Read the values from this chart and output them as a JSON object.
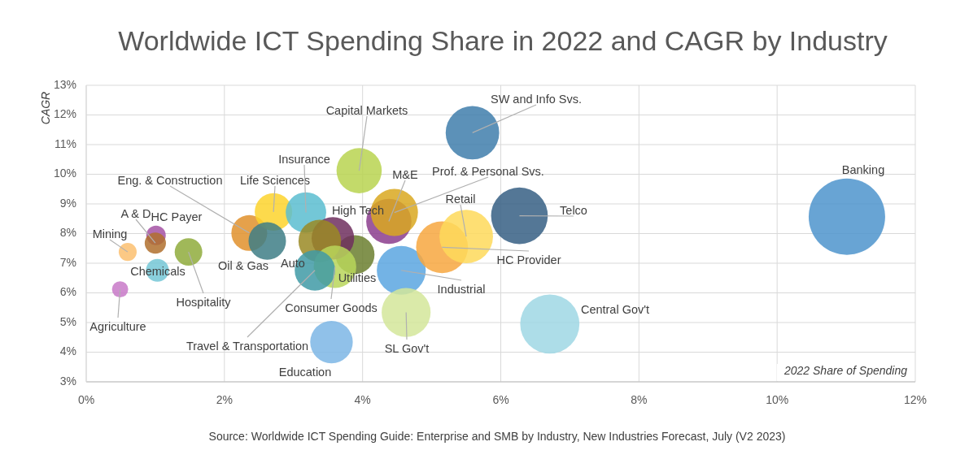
{
  "chart_data": {
    "type": "bubble",
    "title": "Worldwide ICT Spending Share in 2022 and CAGR by Industry",
    "xlabel": "2022 Share of Spending",
    "ylabel": "CAGR",
    "xlim": [
      0,
      12
    ],
    "ylim": [
      3,
      13
    ],
    "xticks": [
      {
        "value": 0,
        "label": "0%"
      },
      {
        "value": 2,
        "label": "2%"
      },
      {
        "value": 4,
        "label": "4%"
      },
      {
        "value": 6,
        "label": "6%"
      },
      {
        "value": 8,
        "label": "8%"
      },
      {
        "value": 10,
        "label": "10%"
      },
      {
        "value": 12,
        "label": "12%"
      }
    ],
    "yticks": [
      {
        "value": 3,
        "label": "3%"
      },
      {
        "value": 4,
        "label": "4%"
      },
      {
        "value": 5,
        "label": "5%"
      },
      {
        "value": 6,
        "label": "6%"
      },
      {
        "value": 7,
        "label": "7%"
      },
      {
        "value": 8,
        "label": "8%"
      },
      {
        "value": 9,
        "label": "9%"
      },
      {
        "value": 10,
        "label": "10%"
      },
      {
        "value": 11,
        "label": "11%"
      },
      {
        "value": 12,
        "label": "12%"
      },
      {
        "value": 13,
        "label": "13%"
      }
    ],
    "grid": true,
    "series": [
      {
        "name": "Agriculture",
        "color": "#c879c8",
        "x": [
          0.49
        ],
        "values": [
          6.12
        ],
        "sizes": [
          0.045
        ]
      },
      {
        "name": "Mining",
        "color": "#fbbf70",
        "x": [
          0.6
        ],
        "values": [
          7.38
        ],
        "sizes": [
          0.055
        ]
      },
      {
        "name": "HC Payer",
        "color": "#a552a5",
        "x": [
          1.01
        ],
        "values": [
          7.94
        ],
        "sizes": [
          0.065
        ]
      },
      {
        "name": "A & D",
        "color": "#b0702e",
        "x": [
          1.0
        ],
        "values": [
          7.68
        ],
        "sizes": [
          0.077
        ]
      },
      {
        "name": "Chemicals",
        "color": "#74c7d6",
        "x": [
          1.03
        ],
        "values": [
          6.76
        ],
        "sizes": [
          0.089
        ]
      },
      {
        "name": "Hospitality",
        "color": "#8fab3c",
        "x": [
          1.48
        ],
        "values": [
          7.38
        ],
        "sizes": [
          0.13
        ]
      },
      {
        "name": "Eng. & Construction",
        "color": "#e0902c",
        "x": [
          2.36
        ],
        "values": [
          8.02
        ],
        "sizes": [
          0.22
        ]
      },
      {
        "name": "Life Sciences",
        "color": "#fdd42d",
        "x": [
          2.71
        ],
        "values": [
          8.73
        ],
        "sizes": [
          0.24
        ]
      },
      {
        "name": "Oil & Gas",
        "color": "#3e7e86",
        "x": [
          2.62
        ],
        "values": [
          7.75
        ],
        "sizes": [
          0.24
        ]
      },
      {
        "name": "Insurance",
        "color": "#5bbdd0",
        "x": [
          3.18
        ],
        "values": [
          8.71
        ],
        "sizes": [
          0.28
        ]
      },
      {
        "name": "Capital Markets",
        "color": "#b8d450",
        "x": [
          3.95
        ],
        "values": [
          10.12
        ],
        "sizes": [
          0.35
        ]
      },
      {
        "name": "Utilities",
        "color": "#6b7f2f",
        "x": [
          3.89
        ],
        "values": [
          7.29
        ],
        "sizes": [
          0.26
        ]
      },
      {
        "name": "High Tech",
        "color": "#6e2f5e",
        "x": [
          3.57
        ],
        "values": [
          7.84
        ],
        "sizes": [
          0.31
        ]
      },
      {
        "name": "Auto",
        "color": "#9a8a25",
        "x": [
          3.38
        ],
        "values": [
          7.75
        ],
        "sizes": [
          0.31
        ]
      },
      {
        "name": "Consumer Goods",
        "color": "#b9d65a",
        "x": [
          3.6
        ],
        "values": [
          6.88
        ],
        "sizes": [
          0.31
        ]
      },
      {
        "name": "Travel & Transportation",
        "color": "#3f9aa6",
        "x": [
          3.31
        ],
        "values": [
          6.76
        ],
        "sizes": [
          0.28
        ]
      },
      {
        "name": "Education",
        "color": "#7db6e5",
        "x": [
          3.55
        ],
        "values": [
          4.34
        ],
        "sizes": [
          0.31
        ]
      },
      {
        "name": "M&E",
        "color": "#8b3d8d",
        "x": [
          4.38
        ],
        "values": [
          8.41
        ],
        "sizes": [
          0.35
        ]
      },
      {
        "name": "Prof. & Personal Svs.",
        "color": "#d9a820",
        "x": [
          4.46
        ],
        "values": [
          8.71
        ],
        "sizes": [
          0.38
        ]
      },
      {
        "name": "Industrial",
        "color": "#5ba6e0",
        "x": [
          4.56
        ],
        "values": [
          6.76
        ],
        "sizes": [
          0.41
        ]
      },
      {
        "name": "SL Gov't",
        "color": "#d3e69a",
        "x": [
          4.63
        ],
        "values": [
          5.34
        ],
        "sizes": [
          0.41
        ]
      },
      {
        "name": "HC Provider",
        "color": "#f7a740",
        "x": [
          5.15
        ],
        "values": [
          7.54
        ],
        "sizes": [
          0.46
        ]
      },
      {
        "name": "Retail",
        "color": "#fed95a",
        "x": [
          5.5
        ],
        "values": [
          7.9
        ],
        "sizes": [
          0.49
        ]
      },
      {
        "name": "SW and Info Svs.",
        "color": "#3f7eab",
        "x": [
          5.59
        ],
        "values": [
          11.4
        ],
        "sizes": [
          0.49
        ]
      },
      {
        "name": "Telco",
        "color": "#365f84",
        "x": [
          6.27
        ],
        "values": [
          8.6
        ],
        "sizes": [
          0.55
        ]
      },
      {
        "name": "Central Gov't",
        "color": "#9fd7e4",
        "x": [
          6.71
        ],
        "values": [
          4.95
        ],
        "sizes": [
          0.6
        ]
      },
      {
        "name": "Banking",
        "color": "#4d94cc",
        "x": [
          11.01
        ],
        "values": [
          8.57
        ],
        "sizes": [
          1
        ]
      }
    ],
    "annotations": [
      "Source: Worldwide ICT Spending Guide: Enterprise and SMB by Industry, New Industries Forecast, July (V2 2023)"
    ]
  }
}
